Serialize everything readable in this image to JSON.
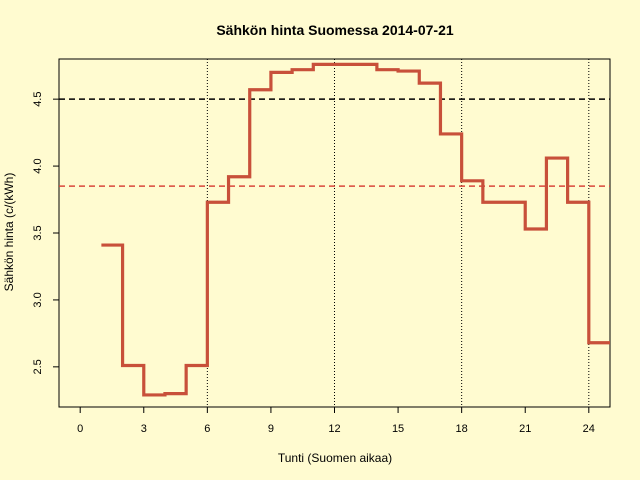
{
  "chart_data": {
    "type": "line",
    "title": "Sähkön hinta Suomessa 2014-07-21",
    "xlabel": "Tunti (Suomen aikaa)",
    "ylabel": "Sähkön hinta (c/(kWh)",
    "xlim": [
      -1,
      25
    ],
    "ylim": [
      2.2,
      4.8
    ],
    "x_ticks": [
      0,
      3,
      6,
      9,
      12,
      15,
      18,
      21,
      24
    ],
    "y_ticks": [
      2.5,
      3.0,
      3.5,
      4.0,
      4.5
    ],
    "y_tick_labels": [
      "2.5",
      "3.0",
      "3.5",
      "4.0",
      "4.5"
    ],
    "vertical_reference_lines": [
      6,
      12,
      18,
      24
    ],
    "horizontal_reference_lines": [
      {
        "value": 4.5,
        "color": "#000000"
      },
      {
        "value": 3.85,
        "color": "#d9473b"
      }
    ],
    "grid": false,
    "series": [
      {
        "style": "step",
        "color": "#c8503a",
        "x": [
          1,
          2,
          3,
          4,
          5,
          6,
          7,
          8,
          9,
          10,
          11,
          12,
          13,
          14,
          15,
          16,
          17,
          18,
          19,
          20,
          21,
          22,
          23,
          24
        ],
        "values": [
          3.41,
          2.51,
          2.29,
          2.3,
          2.51,
          3.73,
          3.92,
          4.57,
          4.7,
          4.72,
          4.76,
          4.76,
          4.76,
          4.72,
          4.71,
          4.62,
          4.24,
          3.89,
          3.73,
          3.73,
          3.53,
          4.06,
          3.73,
          2.68
        ]
      }
    ]
  }
}
